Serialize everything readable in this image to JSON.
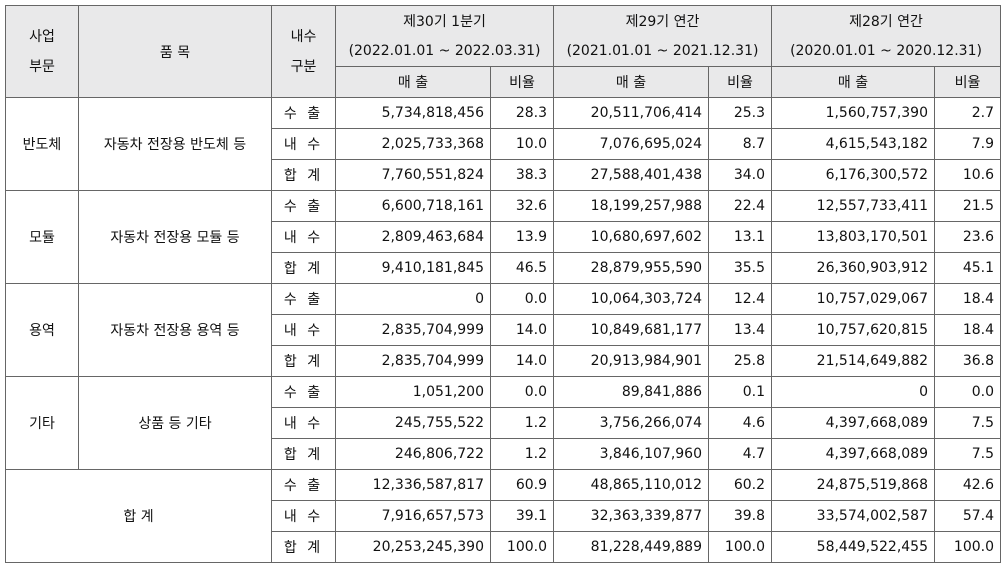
{
  "header": {
    "segment": "사업\n부문",
    "item": "품 목",
    "domestic_export": "내수\n구분",
    "periods": [
      {
        "name": "제30기 1분기",
        "range": "(2022.01.01 ~ 2022.03.31)"
      },
      {
        "name": "제29기 연간",
        "range": "(2021.01.01 ~ 2021.12.31)"
      },
      {
        "name": "제28기 연간",
        "range": "(2020.01.01 ~ 2020.12.31)"
      }
    ],
    "sales": "매 출",
    "ratio": "비율"
  },
  "groups": [
    {
      "segment": "반도체",
      "item": "자동차 전장용 반도체 등",
      "rows": [
        {
          "type": "수 출",
          "v": [
            "5,734,818,456",
            "28.3",
            "20,511,706,414",
            "25.3",
            "1,560,757,390",
            "2.7"
          ]
        },
        {
          "type": "내 수",
          "v": [
            "2,025,733,368",
            "10.0",
            "7,076,695,024",
            "8.7",
            "4,615,543,182",
            "7.9"
          ]
        },
        {
          "type": "합 계",
          "v": [
            "7,760,551,824",
            "38.3",
            "27,588,401,438",
            "34.0",
            "6,176,300,572",
            "10.6"
          ]
        }
      ]
    },
    {
      "segment": "모듈",
      "item": "자동차 전장용 모듈 등",
      "rows": [
        {
          "type": "수 출",
          "v": [
            "6,600,718,161",
            "32.6",
            "18,199,257,988",
            "22.4",
            "12,557,733,411",
            "21.5"
          ]
        },
        {
          "type": "내 수",
          "v": [
            "2,809,463,684",
            "13.9",
            "10,680,697,602",
            "13.1",
            "13,803,170,501",
            "23.6"
          ]
        },
        {
          "type": "합 계",
          "v": [
            "9,410,181,845",
            "46.5",
            "28,879,955,590",
            "35.5",
            "26,360,903,912",
            "45.1"
          ]
        }
      ]
    },
    {
      "segment": "용역",
      "item": "자동차 전장용 용역 등",
      "rows": [
        {
          "type": "수 출",
          "v": [
            "0",
            "0.0",
            "10,064,303,724",
            "12.4",
            "10,757,029,067",
            "18.4"
          ]
        },
        {
          "type": "내 수",
          "v": [
            "2,835,704,999",
            "14.0",
            "10,849,681,177",
            "13.4",
            "10,757,620,815",
            "18.4"
          ]
        },
        {
          "type": "합 계",
          "v": [
            "2,835,704,999",
            "14.0",
            "20,913,984,901",
            "25.8",
            "21,514,649,882",
            "36.8"
          ]
        }
      ]
    },
    {
      "segment": "기타",
      "item": "상품 등 기타",
      "rows": [
        {
          "type": "수 출",
          "v": [
            "1,051,200",
            "0.0",
            "89,841,886",
            "0.1",
            "0",
            "0.0"
          ]
        },
        {
          "type": "내 수",
          "v": [
            "245,755,522",
            "1.2",
            "3,756,266,074",
            "4.6",
            "4,397,668,089",
            "7.5"
          ]
        },
        {
          "type": "합 계",
          "v": [
            "246,806,722",
            "1.2",
            "3,846,107,960",
            "4.7",
            "4,397,668,089",
            "7.5"
          ]
        }
      ]
    }
  ],
  "total": {
    "label": "합 계",
    "rows": [
      {
        "type": "수 출",
        "v": [
          "12,336,587,817",
          "60.9",
          "48,865,110,012",
          "60.2",
          "24,875,519,868",
          "42.6"
        ]
      },
      {
        "type": "내 수",
        "v": [
          "7,916,657,573",
          "39.1",
          "32,363,339,877",
          "39.8",
          "33,574,002,587",
          "57.4"
        ]
      },
      {
        "type": "합 계",
        "v": [
          "20,253,245,390",
          "100.0",
          "81,228,449,889",
          "100.0",
          "58,449,522,455",
          "100.0"
        ]
      }
    ]
  }
}
